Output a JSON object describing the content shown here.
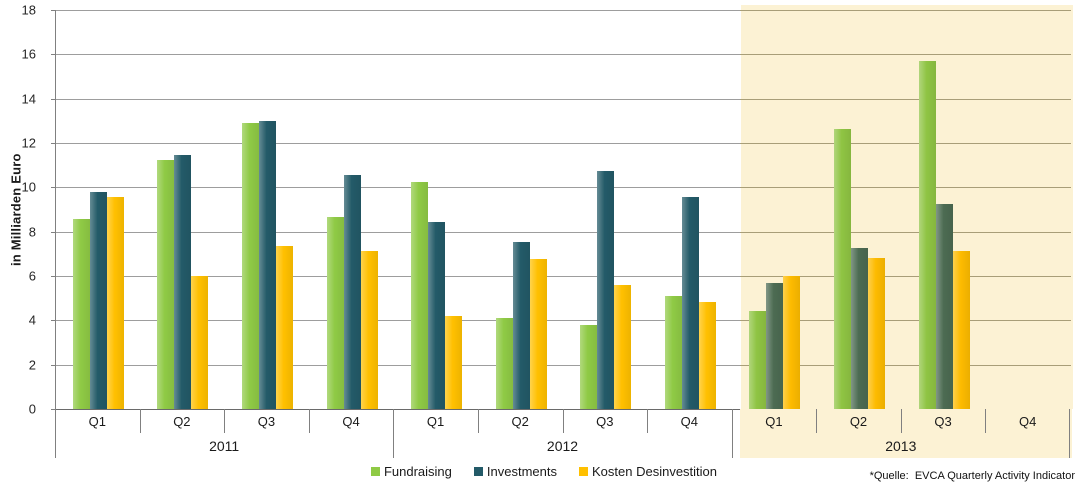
{
  "source_note": "*Quelle:  EVCA Quarterly Activity Indicator",
  "chart_data": {
    "type": "bar",
    "title": "",
    "xlabel": "",
    "ylabel": "in Milliarden Euro",
    "ylim": [
      0,
      18
    ],
    "ytick_step": 2,
    "ytick_labels": [
      18,
      16,
      14,
      12,
      10,
      8,
      6,
      4,
      2,
      0
    ],
    "grid": true,
    "legend_position": "bottom",
    "categories": [
      "Q1",
      "Q2",
      "Q3",
      "Q4",
      "Q1",
      "Q2",
      "Q3",
      "Q4",
      "Q1",
      "Q2",
      "Q3",
      "Q4"
    ],
    "years": [
      {
        "label": "2011",
        "highlight": false
      },
      {
        "label": "2012",
        "highlight": false
      },
      {
        "label": "2013",
        "highlight": true
      }
    ],
    "highlight_color": "#FCF2D4",
    "gridline_color": "#9D9D9D",
    "gridline_color_highlight": "#A89E78",
    "series": [
      {
        "name": "Fundraising",
        "color": "#8FCA45",
        "highlight_color": "#8FC443",
        "values": [
          8.55,
          11.25,
          12.9,
          8.65,
          10.25,
          4.1,
          3.8,
          5.1,
          4.4,
          12.65,
          15.7,
          null
        ]
      },
      {
        "name": "Investments",
        "color": "#235A68",
        "highlight_color": "#4C6B52",
        "values": [
          9.8,
          11.45,
          13.0,
          10.55,
          8.45,
          7.55,
          10.75,
          9.55,
          5.7,
          7.25,
          9.25,
          null
        ]
      },
      {
        "name": "Kosten Desinvestition",
        "color": "#FFC000",
        "highlight_color": "#FDBB00",
        "values": [
          9.55,
          6.0,
          7.35,
          7.15,
          4.2,
          6.75,
          5.6,
          4.85,
          6.0,
          6.8,
          7.15,
          null
        ]
      }
    ]
  }
}
